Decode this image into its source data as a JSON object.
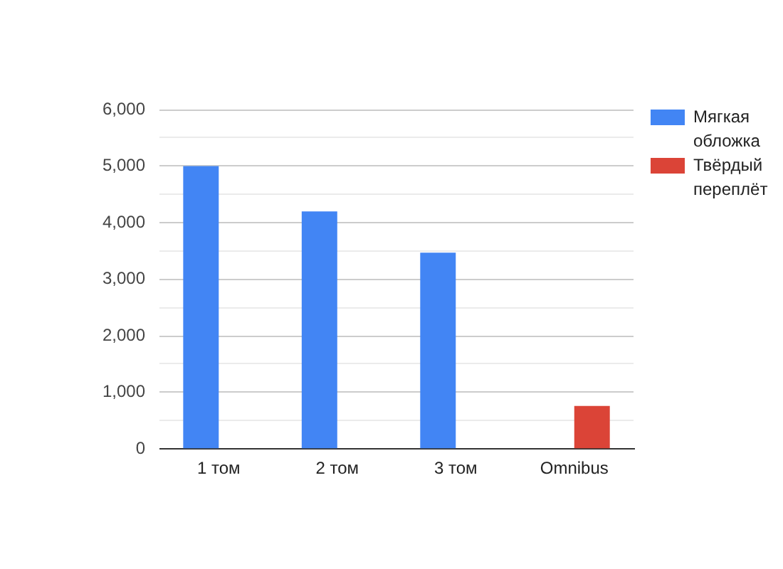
{
  "chart_data": {
    "type": "bar",
    "categories": [
      "1 том",
      "2 том",
      "3 том",
      "Omnibus"
    ],
    "series": [
      {
        "name": "Мягкая обложка",
        "color": "#4285f4",
        "values": [
          5000,
          4200,
          3470,
          null
        ]
      },
      {
        "name": "Твёрдый переплёт",
        "color": "#db4437",
        "values": [
          null,
          null,
          null,
          760
        ]
      }
    ],
    "ylim": [
      0,
      6000
    ],
    "yticks": [
      {
        "value": 0,
        "label": "0"
      },
      {
        "value": 500,
        "label": null
      },
      {
        "value": 1000,
        "label": "1,000"
      },
      {
        "value": 1500,
        "label": null
      },
      {
        "value": 2000,
        "label": "2,000"
      },
      {
        "value": 2500,
        "label": null
      },
      {
        "value": 3000,
        "label": "3,000"
      },
      {
        "value": 3500,
        "label": null
      },
      {
        "value": 4000,
        "label": "4,000"
      },
      {
        "value": 4500,
        "label": null
      },
      {
        "value": 5000,
        "label": "5,000"
      },
      {
        "value": 5500,
        "label": null
      },
      {
        "value": 6000,
        "label": "6,000"
      }
    ],
    "grid": "y",
    "legend": "right"
  }
}
